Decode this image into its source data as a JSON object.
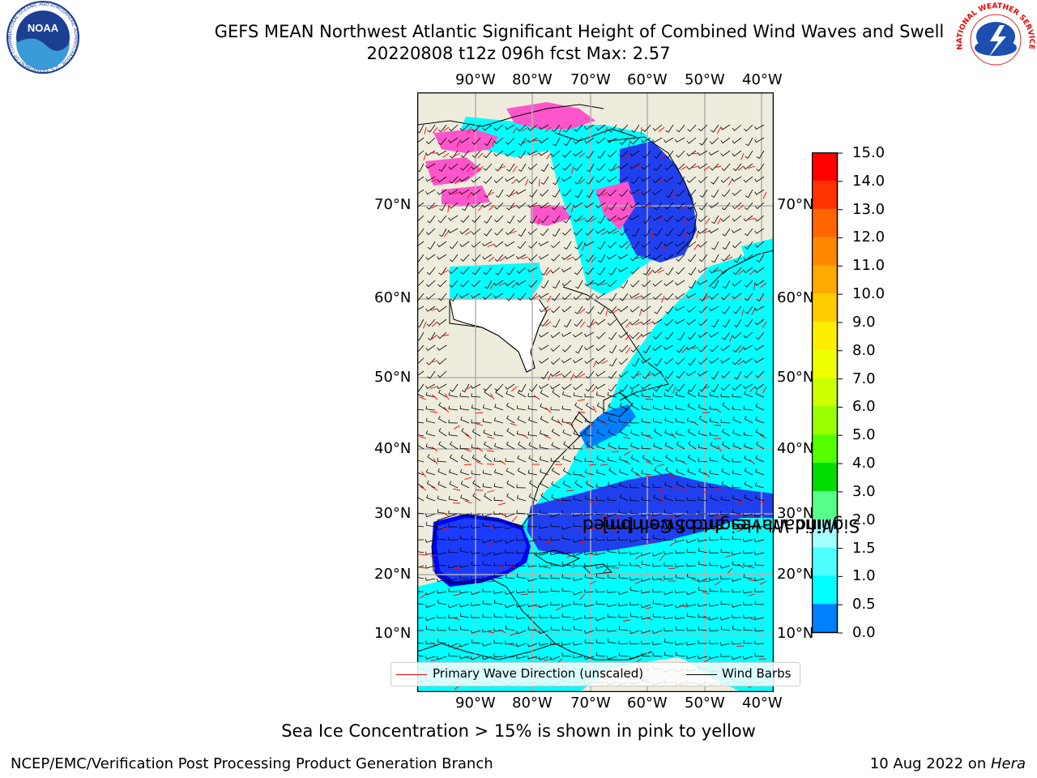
{
  "title_line1": "GEFS MEAN Northwest Atlantic Significant Height of Combined Wind Waves and Swell",
  "title_line2": "20220808 t12z 096h fcst   Max: 2.57",
  "logos": {
    "noaa_text": "NOAA",
    "noaa_ring": "NATIONAL OCEANIC AND ATMOSPHERIC ADMINISTRATION · U.S. DEPARTMENT OF COMMERCE",
    "nws_ring": "NATIONAL WEATHER SERVICE"
  },
  "map": {
    "lon_labels": [
      "90°W",
      "80°W",
      "70°W",
      "60°W",
      "50°W",
      "40°W"
    ],
    "lat_labels": [
      "70°N",
      "60°N",
      "50°N",
      "40°N",
      "30°N",
      "20°N",
      "10°N"
    ],
    "land_color": "#eeecdc",
    "ocean_colors": [
      "#0000ff",
      "#0080ff",
      "#00ffff",
      "#4dffff",
      "#a6ffff"
    ]
  },
  "legend": {
    "wave_label": "Primary Wave Direction (unscaled)",
    "wave_color": "#ff0000",
    "barb_label": "Wind Barbs",
    "barb_color": "#000000"
  },
  "colorbar": {
    "title_line1": "Significant Height of Combined",
    "title_line2": "Wind Waves and Swell [m]",
    "ticks": [
      "15.0",
      "14.0",
      "13.0",
      "12.0",
      "11.0",
      "10.0",
      "9.0",
      "8.0",
      "7.0",
      "6.0",
      "5.0",
      "4.0",
      "3.0",
      "2.0",
      "1.5",
      "1.0",
      "0.5",
      "0.0"
    ],
    "colors_top_to_bottom": [
      "#ff0000",
      "#ff3300",
      "#ff6600",
      "#ff8800",
      "#ffaa00",
      "#ffcc00",
      "#ffee00",
      "#eeff00",
      "#ccff00",
      "#99ff00",
      "#55ff00",
      "#00dd00",
      "#55ff88",
      "#a6ffff",
      "#4dffff",
      "#00ffff",
      "#0080ff",
      "#0000ff"
    ]
  },
  "note": "Sea Ice Concentration > 15% is shown in pink to yellow",
  "footer_left": "NCEP/EMC/Verification Post Processing Product Generation Branch",
  "footer_right_date": "10 Aug 2022 on ",
  "footer_right_host": "Hera"
}
